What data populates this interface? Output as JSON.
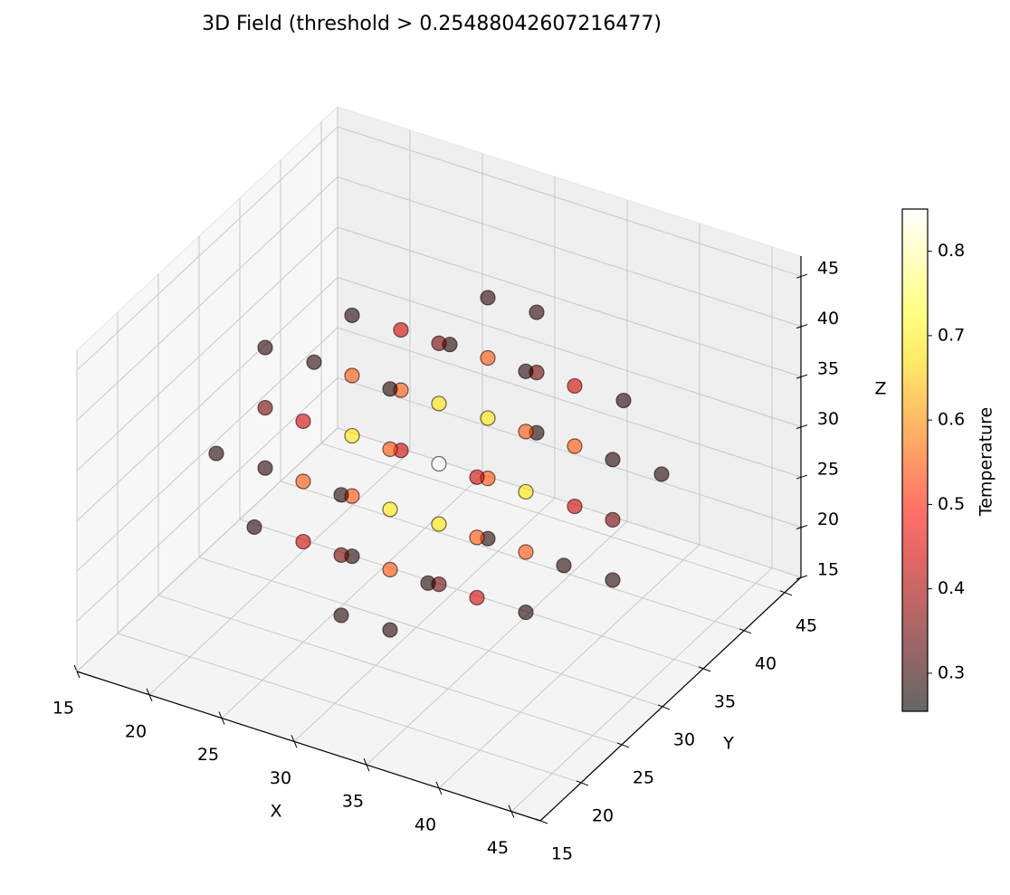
{
  "chart_data": {
    "type": "scatter3d",
    "title": "3D Field (threshold > 0.25488042607216477)",
    "xlabel": "X",
    "ylabel": "Y",
    "zlabel": "Z",
    "colorbar_label": "Temperature",
    "colormap": "hot",
    "alpha": 0.6,
    "xlim": [
      15,
      47
    ],
    "ylim": [
      15,
      47
    ],
    "zlim": [
      15,
      47
    ],
    "xticks": [
      15,
      20,
      25,
      30,
      35,
      40,
      45
    ],
    "yticks": [
      15,
      20,
      25,
      30,
      35,
      40,
      45
    ],
    "zticks": [
      15,
      20,
      25,
      30,
      35,
      40,
      45
    ],
    "clim": [
      0.25488042607216477,
      0.85
    ],
    "cticks": [
      0.3,
      0.4,
      0.5,
      0.6,
      0.7,
      0.8
    ],
    "grid": true,
    "x": [
      25,
      25,
      25,
      25,
      25,
      25,
      25,
      25,
      25,
      31,
      31,
      31,
      31,
      31,
      31,
      31,
      31,
      31,
      37,
      37,
      37,
      37,
      37,
      37,
      37,
      37,
      37,
      19,
      19,
      19,
      19,
      19,
      43,
      43,
      43,
      43,
      43,
      31,
      25,
      37,
      31,
      31,
      31,
      25,
      37,
      31,
      31,
      31,
      25,
      37,
      31,
      31,
      31,
      25,
      37,
      31,
      31
    ],
    "y": [
      25,
      25,
      25,
      31,
      31,
      31,
      37,
      37,
      37,
      25,
      25,
      25,
      31,
      31,
      31,
      37,
      37,
      37,
      25,
      25,
      25,
      31,
      31,
      31,
      37,
      37,
      37,
      31,
      25,
      37,
      31,
      31,
      31,
      25,
      37,
      31,
      31,
      19,
      19,
      19,
      19,
      19,
      43,
      43,
      43,
      43,
      43,
      31,
      31,
      31,
      25,
      37,
      31,
      31,
      31,
      25,
      37
    ],
    "z": [
      25,
      31,
      37,
      25,
      31,
      37,
      25,
      31,
      37,
      25,
      31,
      37,
      25,
      31,
      37,
      25,
      31,
      37,
      25,
      31,
      37,
      25,
      31,
      37,
      25,
      31,
      37,
      31,
      31,
      31,
      25,
      37,
      31,
      31,
      31,
      25,
      37,
      31,
      31,
      31,
      25,
      37,
      31,
      31,
      31,
      25,
      37,
      19,
      19,
      19,
      19,
      19,
      43,
      43,
      43,
      43,
      43
    ],
    "values": [
      0.438,
      0.547,
      0.438,
      0.547,
      0.681,
      0.547,
      0.438,
      0.547,
      0.438,
      0.547,
      0.681,
      0.547,
      0.681,
      0.85,
      0.681,
      0.547,
      0.681,
      0.547,
      0.438,
      0.547,
      0.438,
      0.547,
      0.681,
      0.547,
      0.438,
      0.547,
      0.438,
      0.351,
      0.282,
      0.282,
      0.282,
      0.282,
      0.351,
      0.282,
      0.282,
      0.282,
      0.282,
      0.351,
      0.282,
      0.282,
      0.282,
      0.282,
      0.351,
      0.282,
      0.282,
      0.282,
      0.282,
      0.351,
      0.282,
      0.282,
      0.282,
      0.282,
      0.351,
      0.282,
      0.282,
      0.282,
      0.282
    ]
  }
}
